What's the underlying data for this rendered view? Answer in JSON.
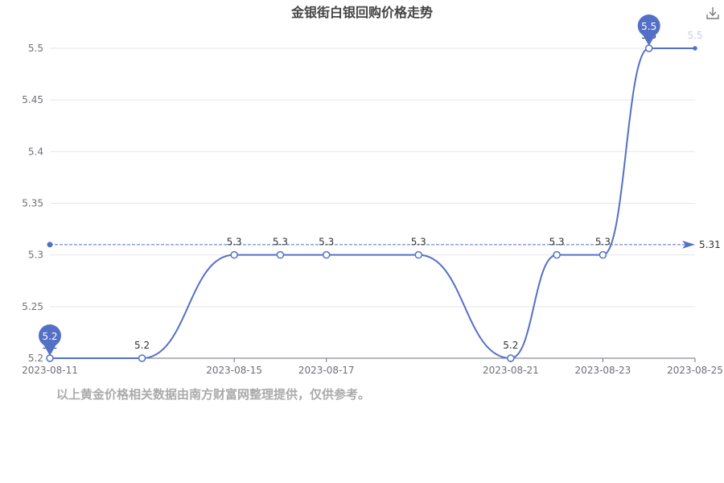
{
  "title": "金银街白银回购价格走势",
  "footnote": "以上黄金价格相关数据由南方财富网整理提供，仅供参考。",
  "icons": {
    "download": "download-icon"
  },
  "colors": {
    "series": "#5470c6",
    "grid": "#e6e6e6",
    "axis": "#6e7079",
    "text": "#333333",
    "title": "#444444",
    "footnote": "#aaaaaa"
  },
  "chart_data": {
    "type": "line",
    "smooth": true,
    "x": [
      "2023-08-11",
      "2023-08-13",
      "2023-08-15",
      "2023-08-16",
      "2023-08-17",
      "2023-08-19",
      "2023-08-21",
      "2023-08-22",
      "2023-08-23",
      "2023-08-24",
      "2023-08-25"
    ],
    "x_tick_labels": [
      "2023-08-11",
      "2023-08-15",
      "2023-08-17",
      "2023-08-21",
      "2023-08-23",
      "2023-08-25"
    ],
    "series": [
      {
        "values": [
          5.2,
          5.2,
          5.3,
          5.3,
          5.3,
          5.3,
          5.2,
          5.3,
          5.3,
          5.5,
          5.5
        ]
      }
    ],
    "data_labels": [
      "5.2",
      "5.2",
      "5.3",
      "5.3",
      "5.3",
      "5.3",
      "5.2",
      "5.3",
      "5.3",
      "5.5",
      "5.5"
    ],
    "ylim": [
      5.2,
      5.5
    ],
    "y_ticks": [
      5.2,
      5.25,
      5.3,
      5.35,
      5.4,
      5.45,
      5.5
    ],
    "y_tick_labels": [
      "5.2",
      "5.25",
      "5.3",
      "5.35",
      "5.4",
      "5.45",
      "5.5"
    ],
    "grid": true,
    "mark_points": [
      {
        "label": "5.2",
        "index": 0
      },
      {
        "label": "5.5",
        "index": 9
      }
    ],
    "average_line": {
      "value": 5.31,
      "label": "5.31"
    }
  }
}
